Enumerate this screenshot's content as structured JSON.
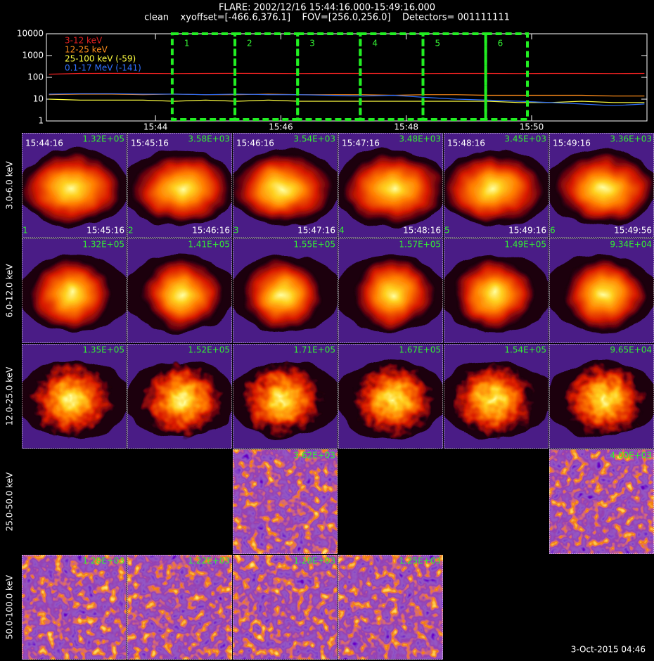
{
  "header": {
    "title": "FLARE: 2002/12/16 15:44:16.000-15:49:16.000",
    "subtitle": "clean    xyoffset=[-466.6,376.1]    FOV=[256.0,256.0]    Detectors= 001111111"
  },
  "chart_data": {
    "type": "line",
    "ylog": true,
    "ylim": [
      1,
      10000
    ],
    "yticks": [
      1,
      10,
      100,
      1000,
      10000
    ],
    "xlim": [
      942.26,
      951.84
    ],
    "xticks": [
      {
        "value": 944,
        "label": "15:44"
      },
      {
        "value": 946,
        "label": "15:46"
      },
      {
        "value": 948,
        "label": "15:48"
      },
      {
        "value": 950,
        "label": "15:50"
      }
    ],
    "x": [
      942.3,
      942.8,
      943.3,
      943.8,
      944.3,
      944.8,
      945.3,
      945.8,
      946.3,
      946.8,
      947.3,
      947.8,
      948.3,
      948.8,
      949.3,
      949.8,
      950.3,
      950.8,
      951.3,
      951.8
    ],
    "series": [
      {
        "name": "3-12 keV",
        "color": "#e02020",
        "values": [
          140,
          150,
          152,
          150,
          148,
          150,
          152,
          150,
          148,
          150,
          150,
          150,
          148,
          150,
          150,
          148,
          150,
          150,
          148,
          150
        ]
      },
      {
        "name": "12-25 keV",
        "color": "#ff8c1a",
        "values": [
          16,
          17,
          17,
          16,
          17,
          16,
          16,
          17,
          16,
          16,
          16,
          15,
          16,
          16,
          15,
          15,
          15,
          15,
          14,
          14
        ]
      },
      {
        "name": "25-100 keV (-59)",
        "color": "#ffff40",
        "values": [
          10,
          9,
          9,
          9,
          8,
          9,
          8,
          9,
          8,
          8,
          8,
          8,
          8,
          8,
          8,
          7,
          7,
          8,
          7,
          7
        ]
      },
      {
        "name": "0.1-17 MeV (-141)",
        "color": "#3070ff",
        "values": [
          17,
          18,
          18,
          17,
          17,
          16,
          17,
          16,
          16,
          15,
          14,
          15,
          12,
          10,
          9,
          8,
          7,
          6,
          5,
          6
        ]
      }
    ],
    "intervals": [
      {
        "label": "1",
        "start": 944.267,
        "end": 945.267
      },
      {
        "label": "2",
        "start": 945.267,
        "end": 946.267
      },
      {
        "label": "3",
        "start": 946.267,
        "end": 947.267
      },
      {
        "label": "4",
        "start": 947.267,
        "end": 948.267
      },
      {
        "label": "5",
        "start": 948.267,
        "end": 949.267
      },
      {
        "label": "6",
        "start": 949.267,
        "end": 949.933
      }
    ]
  },
  "panels": {
    "rows": [
      {
        "label": "3.0-6.0 keV",
        "cells": [
          {
            "start": "15:44:16",
            "max": "1.32E+05",
            "index": "1",
            "end": "15:45:16"
          },
          {
            "start": "15:45:16",
            "max": "3.58E+03",
            "index": "2",
            "end": "15:46:16"
          },
          {
            "start": "15:46:16",
            "max": "3.54E+03",
            "index": "3",
            "end": "15:47:16"
          },
          {
            "start": "15:47:16",
            "max": "3.48E+03",
            "index": "4",
            "end": "15:48:16"
          },
          {
            "start": "15:48:16",
            "max": "3.45E+03",
            "index": "5",
            "end": "15:49:16"
          },
          {
            "start": "15:49:16",
            "max": "3.36E+03",
            "index": "6",
            "end": "15:49:56"
          }
        ]
      },
      {
        "label": "6.0-12.0 keV",
        "cells": [
          {
            "max": "1.32E+05"
          },
          {
            "max": "1.41E+05"
          },
          {
            "max": "1.55E+05"
          },
          {
            "max": "1.57E+05"
          },
          {
            "max": "1.49E+05"
          },
          {
            "max": "9.34E+04"
          }
        ]
      },
      {
        "label": "12.0-25.0 keV",
        "cells": [
          {
            "max": "1.35E+05"
          },
          {
            "max": "1.52E+05"
          },
          {
            "max": "1.71E+05"
          },
          {
            "max": "1.67E+05"
          },
          {
            "max": "1.54E+05"
          },
          {
            "max": "9.65E+04"
          }
        ]
      },
      {
        "label": "25.0-50.0 keV",
        "cells": [
          null,
          null,
          {
            "max": "3.62E+03"
          },
          null,
          null,
          {
            "max": "4.00E+03"
          }
        ]
      },
      {
        "label": "50.0-100.0 keV",
        "cells": [
          {
            "max": "1.28E+03"
          },
          {
            "max": "1.22E+03"
          },
          {
            "max": "1.28E+03"
          },
          {
            "max": "1.25E+03"
          },
          null,
          null
        ]
      }
    ]
  },
  "footer": "3-Oct-2015 04:46"
}
